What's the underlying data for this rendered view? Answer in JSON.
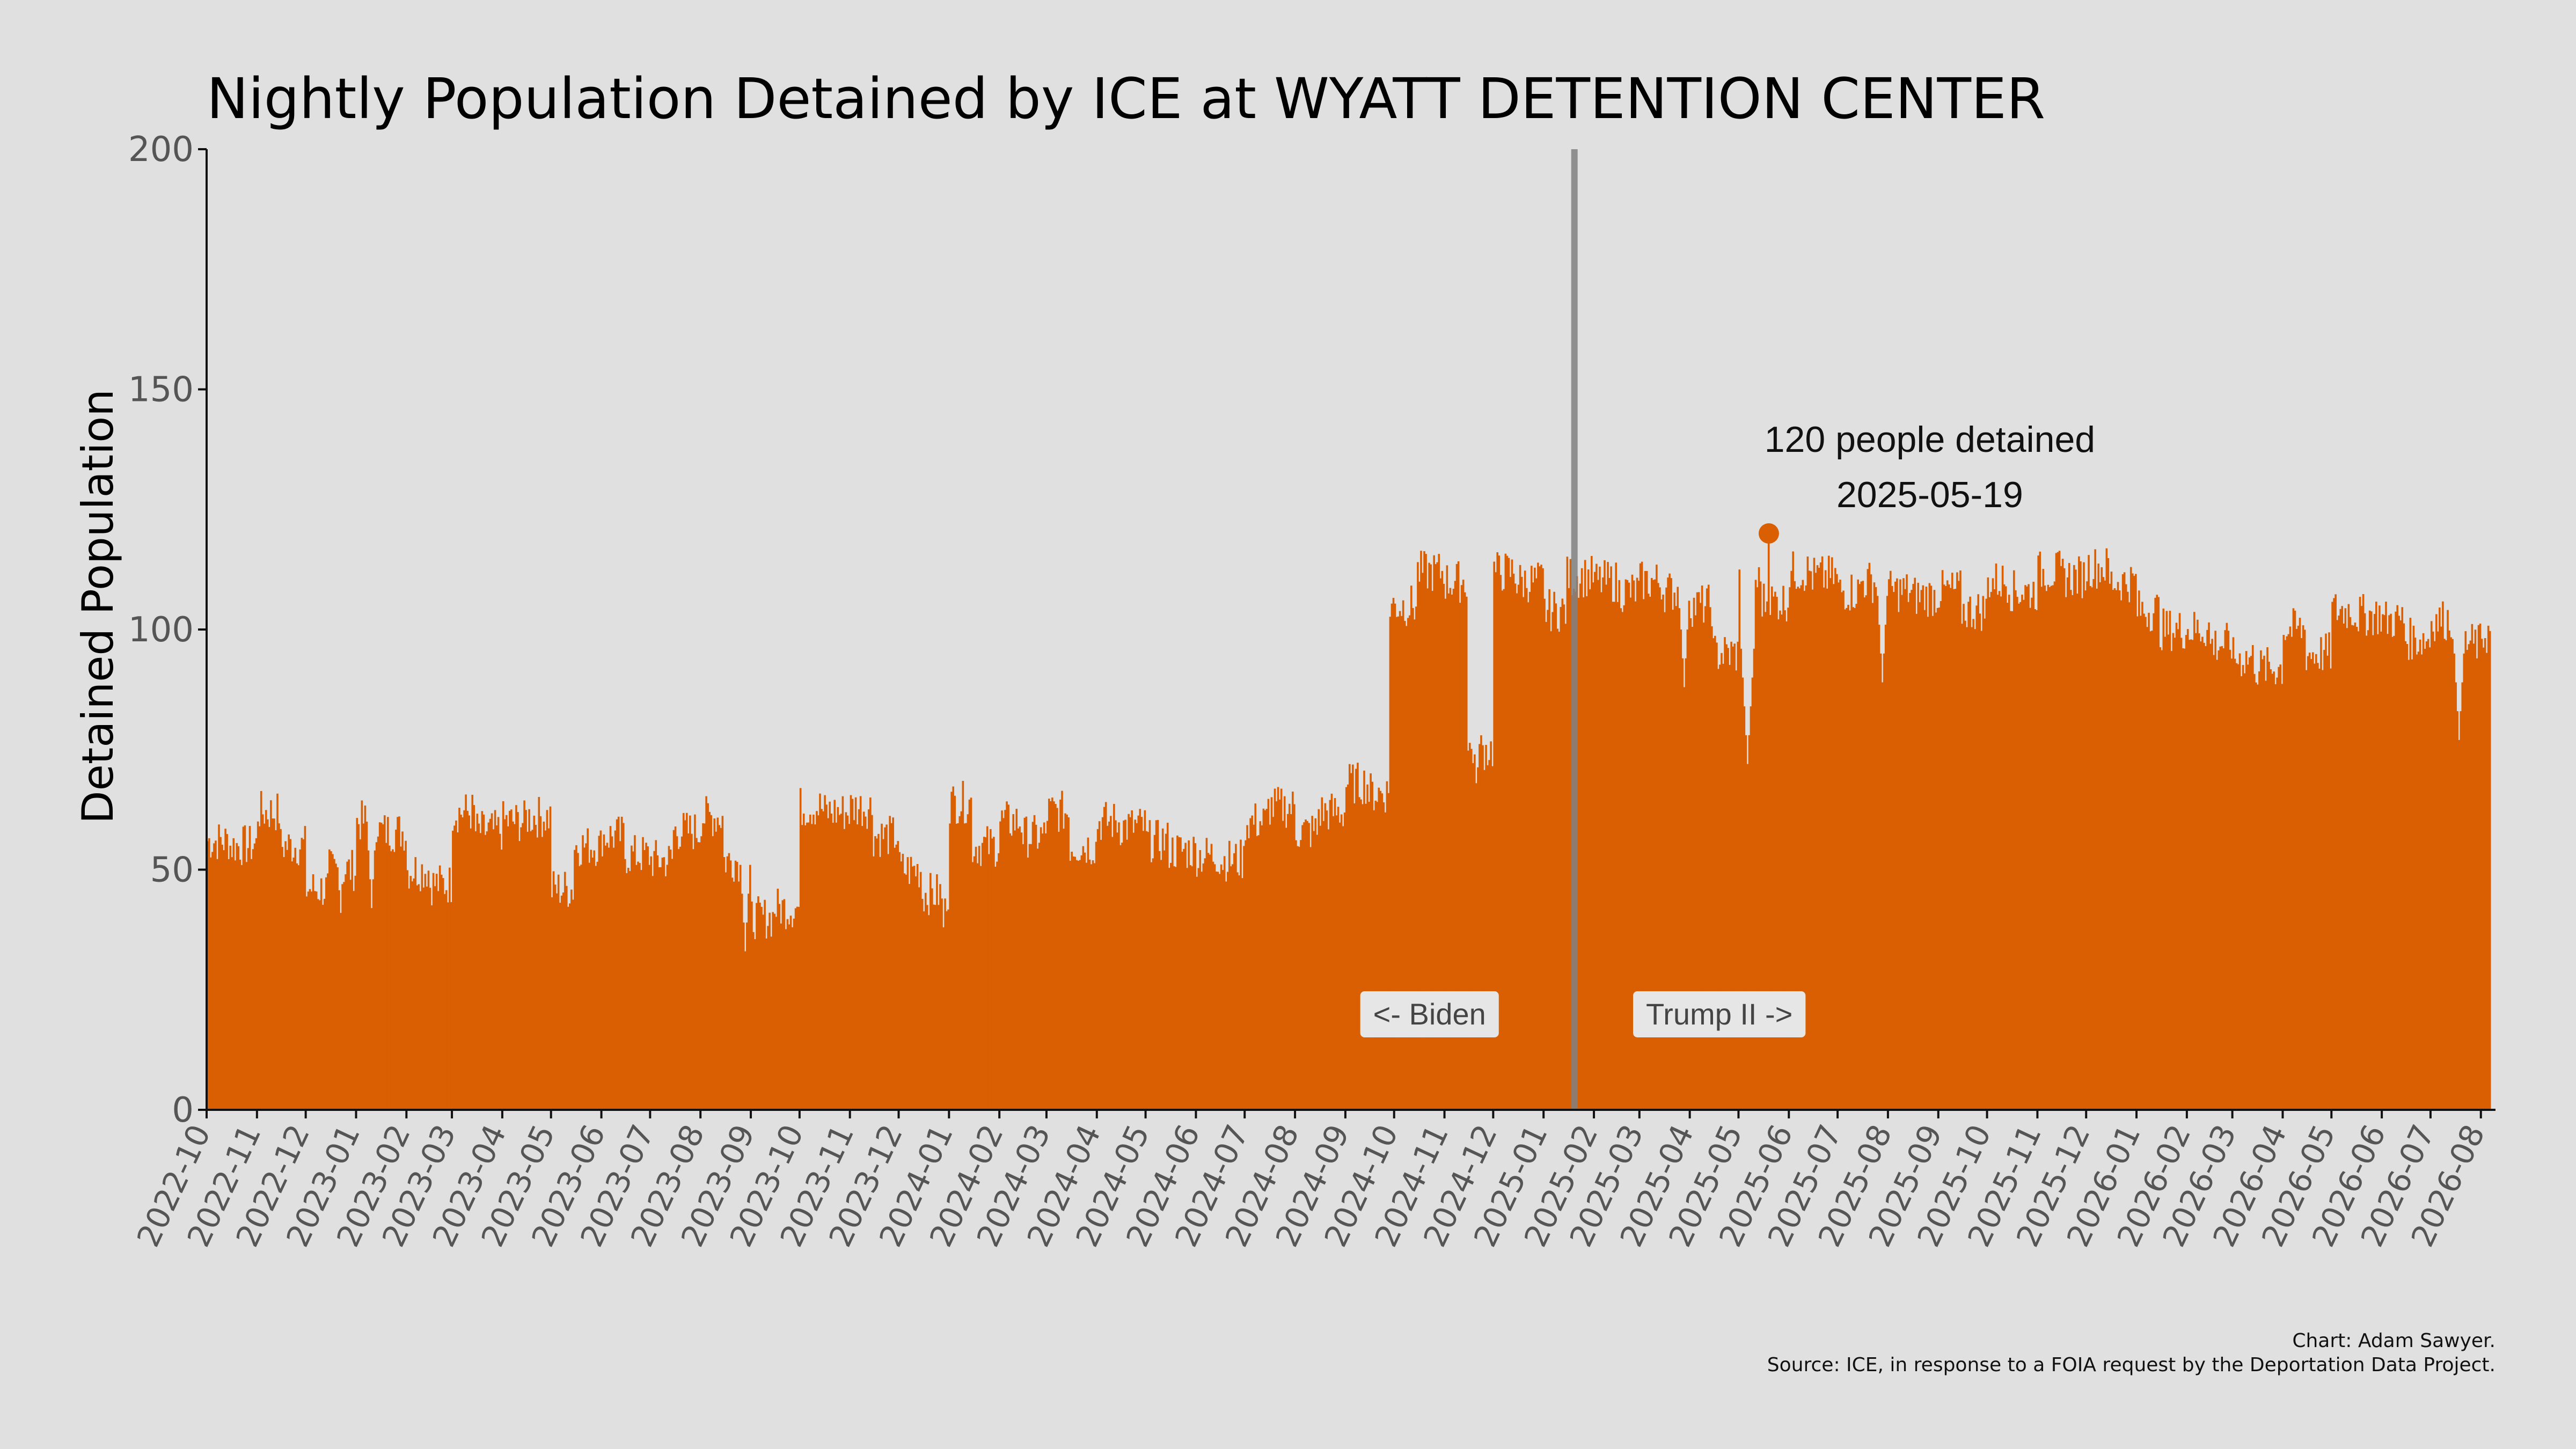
{
  "chart_data": {
    "type": "bar",
    "title": "Nightly Population Detained by ICE at WYATT DETENTION CENTER",
    "xlabel": "",
    "ylabel": "Detained Population",
    "ylim": [
      0,
      200
    ],
    "yticks": [
      0,
      50,
      100,
      150,
      200
    ],
    "xlim": [
      "2022-10-01",
      "2026-08-10"
    ],
    "grid": false,
    "bar_color": "#d95f02",
    "divider_date": "2025-01-20",
    "divider_color": "#808080",
    "x_tick_labels": [
      "2022-10",
      "2022-11",
      "2022-12",
      "2023-01",
      "2023-02",
      "2023-03",
      "2023-04",
      "2023-05",
      "2023-06",
      "2023-07",
      "2023-08",
      "2023-09",
      "2023-10",
      "2023-11",
      "2023-12",
      "2024-01",
      "2024-02",
      "2024-03",
      "2024-04",
      "2024-05",
      "2024-06",
      "2024-07",
      "2024-08",
      "2024-09",
      "2024-10",
      "2024-11",
      "2024-12",
      "2025-01",
      "2025-02",
      "2025-03",
      "2025-04",
      "2025-05",
      "2025-06",
      "2025-07",
      "2025-08",
      "2025-09",
      "2025-10",
      "2025-11",
      "2025-12",
      "2026-01",
      "2026-02",
      "2026-03",
      "2026-04",
      "2026-05",
      "2026-06",
      "2026-07",
      "2026-08"
    ],
    "series": [
      {
        "step_dates": [
          "2022-10-01",
          "2022-10-15",
          "2022-11-01",
          "2022-11-15",
          "2022-12-01",
          "2022-12-15",
          "2023-01-01",
          "2023-01-15",
          "2023-02-01",
          "2023-02-15",
          "2023-03-01",
          "2023-03-15",
          "2023-04-01",
          "2023-04-15",
          "2023-05-01",
          "2023-05-15",
          "2023-06-01",
          "2023-06-15",
          "2023-07-01",
          "2023-07-15",
          "2023-08-01",
          "2023-08-15",
          "2023-09-01",
          "2023-09-15",
          "2023-10-01",
          "2023-10-15",
          "2023-11-01",
          "2023-11-15",
          "2023-12-01",
          "2023-12-15",
          "2024-01-01",
          "2024-01-15",
          "2024-02-01",
          "2024-02-15",
          "2024-03-01",
          "2024-03-15",
          "2024-04-01",
          "2024-04-15",
          "2024-05-01",
          "2024-05-15",
          "2024-06-01",
          "2024-06-15",
          "2024-07-01",
          "2024-07-15",
          "2024-08-01",
          "2024-08-15",
          "2024-09-01",
          "2024-09-15",
          "2024-09-28",
          "2024-10-15",
          "2024-11-01",
          "2024-11-15",
          "2024-12-01",
          "2024-12-15",
          "2025-01-01",
          "2025-01-15",
          "2025-02-01",
          "2025-02-15",
          "2025-03-01",
          "2025-03-15",
          "2025-04-01",
          "2025-04-15",
          "2025-05-01",
          "2025-05-15",
          "2025-06-01",
          "2025-06-15",
          "2025-07-01",
          "2025-07-15",
          "2025-08-01",
          "2025-08-15",
          "2025-09-01",
          "2025-09-15",
          "2025-10-01",
          "2025-10-15",
          "2025-11-01",
          "2025-11-15",
          "2025-12-01",
          "2025-12-15",
          "2026-01-01",
          "2026-01-15",
          "2026-02-01",
          "2026-02-15",
          "2026-03-01",
          "2026-03-15",
          "2026-04-01",
          "2026-04-15",
          "2026-05-01",
          "2026-05-15",
          "2026-06-01",
          "2026-06-15",
          "2026-07-01",
          "2026-07-15",
          "2026-08-01"
        ],
        "step_values": [
          56,
          55,
          62,
          55,
          46,
          50,
          60,
          58,
          50,
          47,
          62,
          58,
          60,
          61,
          46,
          55,
          57,
          53,
          52,
          58,
          61,
          52,
          40,
          42,
          63,
          62,
          63,
          57,
          50,
          45,
          64,
          55,
          60,
          57,
          62,
          55,
          60,
          59,
          56,
          54,
          53,
          52,
          60,
          63,
          58,
          62,
          68,
          66,
          105,
          112,
          110,
          75,
          112,
          110,
          104,
          111,
          110,
          108,
          110,
          108,
          105,
          95,
          110,
          106,
          112,
          111,
          108,
          110,
          108,
          107,
          108,
          104,
          110,
          108,
          112,
          111,
          113,
          110,
          104,
          100,
          100,
          97,
          94,
          92,
          100,
          95,
          104,
          103,
          102,
          98,
          102,
          97,
          99
        ],
        "end_date": "2026-08-06",
        "dips": [
          {
            "date": "2022-12-22",
            "value": 41
          },
          {
            "date": "2023-01-10",
            "value": 42
          },
          {
            "date": "2023-08-28",
            "value": 33
          },
          {
            "date": "2023-12-28",
            "value": 38
          },
          {
            "date": "2024-11-20",
            "value": 68
          },
          {
            "date": "2025-03-28",
            "value": 88
          },
          {
            "date": "2025-05-06",
            "value": 72
          },
          {
            "date": "2025-07-28",
            "value": 89
          },
          {
            "date": "2026-07-18",
            "value": 77
          }
        ]
      }
    ],
    "highlight": {
      "date": "2025-05-19",
      "value": 120
    },
    "annotations": {
      "peak_line1": "120 people detained",
      "peak_line2": "2025-05-19",
      "left_era": "<- Biden",
      "right_era": "Trump II ->"
    },
    "caption_line1": "Chart: Adam Sawyer.",
    "caption_line2": "Source: ICE, in response to a FOIA request by the Deportation Data Project."
  }
}
